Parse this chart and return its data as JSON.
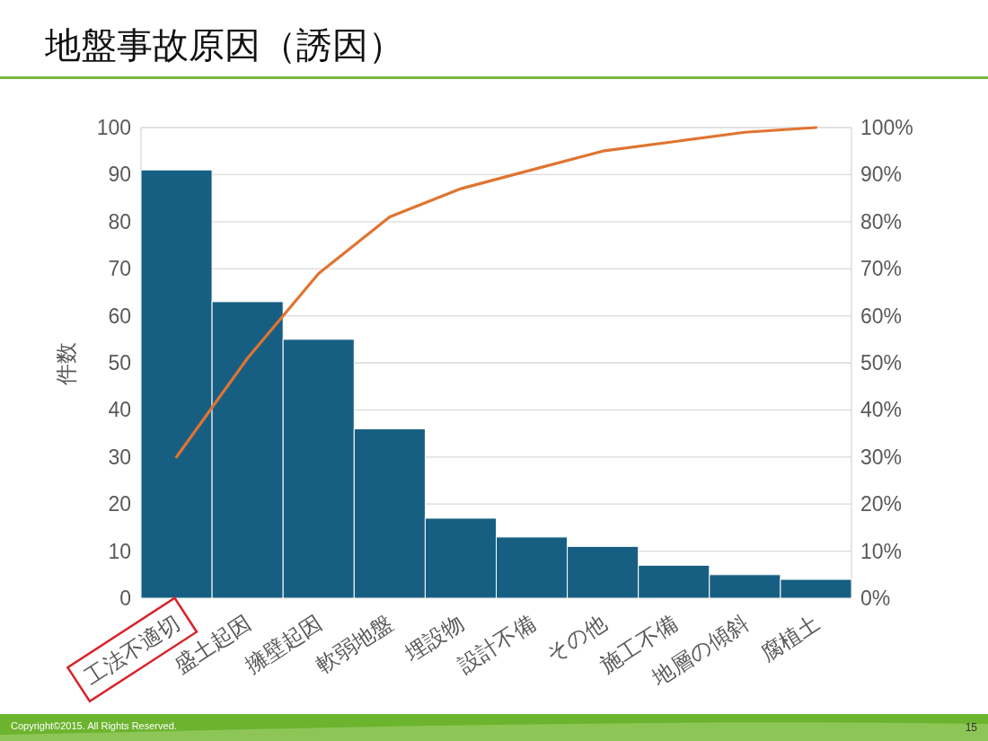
{
  "chart_data": {
    "type": "bar",
    "title": "地盤事故原因（誘因）",
    "ylabel": "件数",
    "categories": [
      "工法不適切",
      "盛土起因",
      "擁壁起因",
      "軟弱地盤",
      "埋設物",
      "設計不備",
      "その他",
      "施工不備",
      "地層の傾斜",
      "腐植土"
    ],
    "series": [
      {
        "color": "#175f82",
        "values": [
          91,
          63,
          55,
          36,
          17,
          13,
          11,
          7,
          5,
          4
        ]
      },
      {
        "type": "line",
        "axis": "y2",
        "color": "#e07431",
        "values": [
          30,
          51,
          69,
          81,
          87,
          91,
          95,
          97,
          99,
          100
        ]
      }
    ],
    "ylim": [
      0,
      100
    ],
    "yticks": [
      0,
      10,
      20,
      30,
      40,
      50,
      60,
      70,
      80,
      90,
      100
    ],
    "y2lim": [
      0,
      100
    ],
    "y2ticks": [
      {
        "value": 0,
        "label": "0%"
      },
      {
        "value": 10,
        "label": "10%"
      },
      {
        "value": 20,
        "label": "20%"
      },
      {
        "value": 30,
        "label": "30%"
      },
      {
        "value": 40,
        "label": "40%"
      },
      {
        "value": 50,
        "label": "50%"
      },
      {
        "value": 60,
        "label": "60%"
      },
      {
        "value": 70,
        "label": "70%"
      },
      {
        "value": 80,
        "label": "80%"
      },
      {
        "value": 90,
        "label": "90%"
      },
      {
        "value": 100,
        "label": "100%"
      }
    ],
    "grid": "y",
    "annotations": [
      "Copyright©2015. All Rights Reserved.",
      "15"
    ]
  }
}
